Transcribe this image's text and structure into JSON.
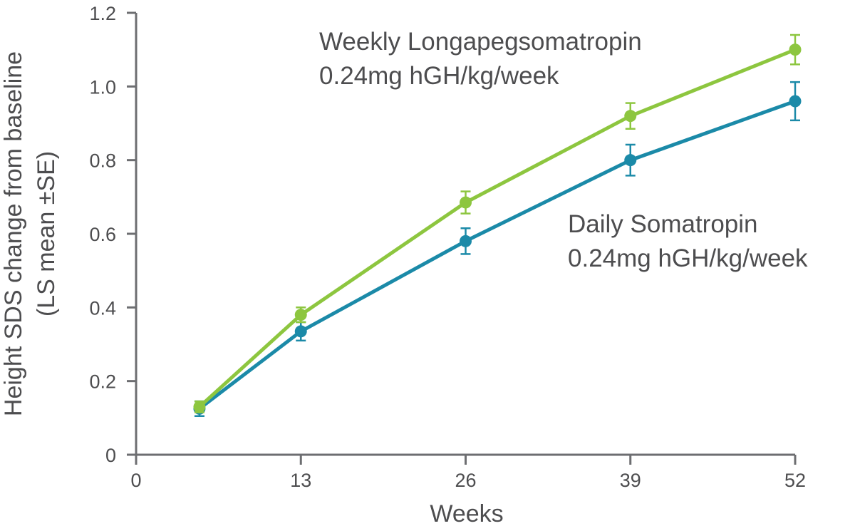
{
  "chart_data": {
    "type": "line",
    "title": "",
    "xlabel": "Weeks",
    "ylabel": [
      "Height SDS change from baseline",
      "(LS mean ±SE)"
    ],
    "xlim": [
      0,
      52
    ],
    "ylim": [
      0,
      1.2
    ],
    "x_ticks": [
      "0",
      "13",
      "26",
      "39",
      "52"
    ],
    "y_ticks": [
      "0",
      "0.2",
      "0.4",
      "0.6",
      "0.8",
      "1.0",
      "1.2"
    ],
    "grid": false,
    "legend": "none (series labeled directly on chart)",
    "series": [
      {
        "name": "Weekly Longapegsomatropin",
        "label_lines": [
          "Weekly Longapegsomatropin",
          "0.24mg hGH/kg/week"
        ],
        "color": "#8dc63f",
        "x": [
          5,
          13,
          26,
          39,
          52
        ],
        "y": [
          0.13,
          0.38,
          0.685,
          0.92,
          1.1
        ],
        "se": [
          0.015,
          0.02,
          0.03,
          0.035,
          0.04
        ]
      },
      {
        "name": "Daily Somatropin",
        "label_lines": [
          "Daily Somatropin",
          "0.24mg hGH/kg/week"
        ],
        "color": "#1b8aa8",
        "x": [
          5,
          13,
          26,
          39,
          52
        ],
        "y": [
          0.125,
          0.335,
          0.58,
          0.8,
          0.96
        ],
        "se": [
          0.02,
          0.025,
          0.035,
          0.042,
          0.052
        ]
      }
    ]
  }
}
